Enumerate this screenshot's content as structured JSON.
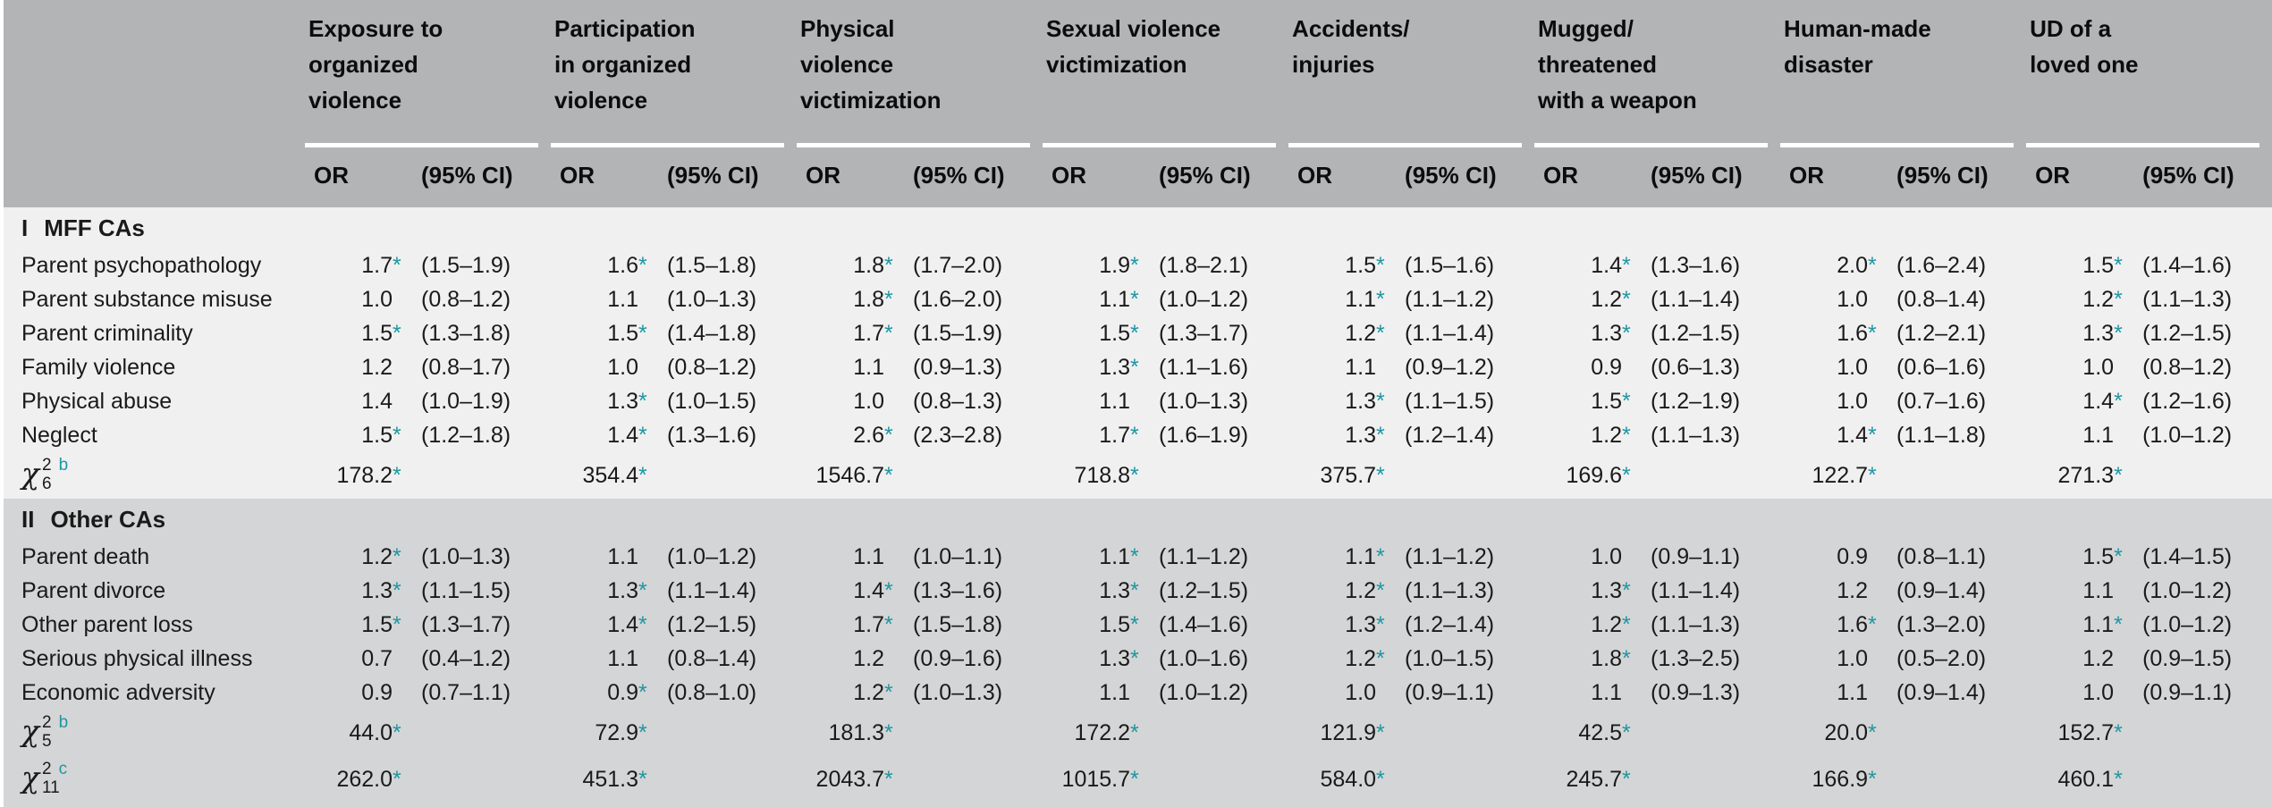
{
  "colors": {
    "header_bg": "#b2b4b6",
    "section1_bg": "#f0f0f1",
    "section2_bg": "#d4d5d6",
    "accent_teal": "#1d97a1",
    "ink": "#1a1a1a"
  },
  "table": {
    "sig_marker": "*",
    "subheader": {
      "or": "OR",
      "ci": "(95% CI)"
    },
    "groups": [
      {
        "title": "Exposure to\norganized\nviolence"
      },
      {
        "title": "Participation\nin organized\nviolence"
      },
      {
        "title": "Physical\nviolence\nvictimization"
      },
      {
        "title": "Sexual violence\nvictimization"
      },
      {
        "title": "Accidents/\ninjuries"
      },
      {
        "title": "Mugged/\nthreatened\nwith a weapon"
      },
      {
        "title": "Human-made\ndisaster"
      },
      {
        "title": "UD of a\nloved one"
      }
    ],
    "sections": [
      {
        "num": "I",
        "name": "MFF CAs",
        "rows": [
          {
            "label": "Parent psychopathology",
            "cells": [
              {
                "or": "1.7",
                "sig": true,
                "ci": "(1.5–1.9)"
              },
              {
                "or": "1.6",
                "sig": true,
                "ci": "(1.5–1.8)"
              },
              {
                "or": "1.8",
                "sig": true,
                "ci": "(1.7–2.0)"
              },
              {
                "or": "1.9",
                "sig": true,
                "ci": "(1.8–2.1)"
              },
              {
                "or": "1.5",
                "sig": true,
                "ci": "(1.5–1.6)"
              },
              {
                "or": "1.4",
                "sig": true,
                "ci": "(1.3–1.6)"
              },
              {
                "or": "2.0",
                "sig": true,
                "ci": "(1.6–2.4)"
              },
              {
                "or": "1.5",
                "sig": true,
                "ci": "(1.4–1.6)"
              }
            ]
          },
          {
            "label": "Parent substance misuse",
            "cells": [
              {
                "or": "1.0",
                "sig": false,
                "ci": "(0.8–1.2)"
              },
              {
                "or": "1.1",
                "sig": false,
                "ci": "(1.0–1.3)"
              },
              {
                "or": "1.8",
                "sig": true,
                "ci": "(1.6–2.0)"
              },
              {
                "or": "1.1",
                "sig": true,
                "ci": "(1.0–1.2)"
              },
              {
                "or": "1.1",
                "sig": true,
                "ci": "(1.1–1.2)"
              },
              {
                "or": "1.2",
                "sig": true,
                "ci": "(1.1–1.4)"
              },
              {
                "or": "1.0",
                "sig": false,
                "ci": "(0.8–1.4)"
              },
              {
                "or": "1.2",
                "sig": true,
                "ci": "(1.1–1.3)"
              }
            ]
          },
          {
            "label": "Parent criminality",
            "cells": [
              {
                "or": "1.5",
                "sig": true,
                "ci": "(1.3–1.8)"
              },
              {
                "or": "1.5",
                "sig": true,
                "ci": "(1.4–1.8)"
              },
              {
                "or": "1.7",
                "sig": true,
                "ci": "(1.5–1.9)"
              },
              {
                "or": "1.5",
                "sig": true,
                "ci": "(1.3–1.7)"
              },
              {
                "or": "1.2",
                "sig": true,
                "ci": "(1.1–1.4)"
              },
              {
                "or": "1.3",
                "sig": true,
                "ci": "(1.2–1.5)"
              },
              {
                "or": "1.6",
                "sig": true,
                "ci": "(1.2–2.1)"
              },
              {
                "or": "1.3",
                "sig": true,
                "ci": "(1.2–1.5)"
              }
            ]
          },
          {
            "label": "Family violence",
            "cells": [
              {
                "or": "1.2",
                "sig": false,
                "ci": "(0.8–1.7)"
              },
              {
                "or": "1.0",
                "sig": false,
                "ci": "(0.8–1.2)"
              },
              {
                "or": "1.1",
                "sig": false,
                "ci": "(0.9–1.3)"
              },
              {
                "or": "1.3",
                "sig": true,
                "ci": "(1.1–1.6)"
              },
              {
                "or": "1.1",
                "sig": false,
                "ci": "(0.9–1.2)"
              },
              {
                "or": "0.9",
                "sig": false,
                "ci": "(0.6–1.3)"
              },
              {
                "or": "1.0",
                "sig": false,
                "ci": "(0.6–1.6)"
              },
              {
                "or": "1.0",
                "sig": false,
                "ci": "(0.8–1.2)"
              }
            ]
          },
          {
            "label": "Physical abuse",
            "cells": [
              {
                "or": "1.4",
                "sig": false,
                "ci": "(1.0–1.9)"
              },
              {
                "or": "1.3",
                "sig": true,
                "ci": "(1.0–1.5)"
              },
              {
                "or": "1.0",
                "sig": false,
                "ci": "(0.8–1.3)"
              },
              {
                "or": "1.1",
                "sig": false,
                "ci": "(1.0–1.3)"
              },
              {
                "or": "1.3",
                "sig": true,
                "ci": "(1.1–1.5)"
              },
              {
                "or": "1.5",
                "sig": true,
                "ci": "(1.2–1.9)"
              },
              {
                "or": "1.0",
                "sig": false,
                "ci": "(0.7–1.6)"
              },
              {
                "or": "1.4",
                "sig": true,
                "ci": "(1.2–1.6)"
              }
            ]
          },
          {
            "label": "Neglect",
            "cells": [
              {
                "or": "1.5",
                "sig": true,
                "ci": "(1.2–1.8)"
              },
              {
                "or": "1.4",
                "sig": true,
                "ci": "(1.3–1.6)"
              },
              {
                "or": "2.6",
                "sig": true,
                "ci": "(2.3–2.8)"
              },
              {
                "or": "1.7",
                "sig": true,
                "ci": "(1.6–1.9)"
              },
              {
                "or": "1.3",
                "sig": true,
                "ci": "(1.2–1.4)"
              },
              {
                "or": "1.2",
                "sig": true,
                "ci": "(1.1–1.3)"
              },
              {
                "or": "1.4",
                "sig": true,
                "ci": "(1.1–1.8)"
              },
              {
                "or": "1.1",
                "sig": false,
                "ci": "(1.0–1.2)"
              }
            ]
          }
        ],
        "chi_rows": [
          {
            "sym": "χ",
            "exp": "2",
            "idx": "6",
            "fn": "b",
            "values": [
              {
                "v": "178.2",
                "sig": true
              },
              {
                "v": "354.4",
                "sig": true
              },
              {
                "v": "1546.7",
                "sig": true
              },
              {
                "v": "718.8",
                "sig": true
              },
              {
                "v": "375.7",
                "sig": true
              },
              {
                "v": "169.6",
                "sig": true
              },
              {
                "v": "122.7",
                "sig": true
              },
              {
                "v": "271.3",
                "sig": true
              }
            ]
          }
        ]
      },
      {
        "num": "II",
        "name": "Other CAs",
        "rows": [
          {
            "label": "Parent death",
            "cells": [
              {
                "or": "1.2",
                "sig": true,
                "ci": "(1.0–1.3)"
              },
              {
                "or": "1.1",
                "sig": false,
                "ci": "(1.0–1.2)"
              },
              {
                "or": "1.1",
                "sig": false,
                "ci": "(1.0–1.1)"
              },
              {
                "or": "1.1",
                "sig": true,
                "ci": "(1.1–1.2)"
              },
              {
                "or": "1.1",
                "sig": true,
                "ci": "(1.1–1.2)"
              },
              {
                "or": "1.0",
                "sig": false,
                "ci": "(0.9–1.1)"
              },
              {
                "or": "0.9",
                "sig": false,
                "ci": "(0.8–1.1)"
              },
              {
                "or": "1.5",
                "sig": true,
                "ci": "(1.4–1.5)"
              }
            ]
          },
          {
            "label": "Parent divorce",
            "cells": [
              {
                "or": "1.3",
                "sig": true,
                "ci": "(1.1–1.5)"
              },
              {
                "or": "1.3",
                "sig": true,
                "ci": "(1.1–1.4)"
              },
              {
                "or": "1.4",
                "sig": true,
                "ci": "(1.3–1.6)"
              },
              {
                "or": "1.3",
                "sig": true,
                "ci": "(1.2–1.5)"
              },
              {
                "or": "1.2",
                "sig": true,
                "ci": "(1.1–1.3)"
              },
              {
                "or": "1.3",
                "sig": true,
                "ci": "(1.1–1.4)"
              },
              {
                "or": "1.2",
                "sig": false,
                "ci": "(0.9–1.4)"
              },
              {
                "or": "1.1",
                "sig": false,
                "ci": "(1.0–1.2)"
              }
            ]
          },
          {
            "label": "Other parent loss",
            "cells": [
              {
                "or": "1.5",
                "sig": true,
                "ci": "(1.3–1.7)"
              },
              {
                "or": "1.4",
                "sig": true,
                "ci": "(1.2–1.5)"
              },
              {
                "or": "1.7",
                "sig": true,
                "ci": "(1.5–1.8)"
              },
              {
                "or": "1.5",
                "sig": true,
                "ci": "(1.4–1.6)"
              },
              {
                "or": "1.3",
                "sig": true,
                "ci": "(1.2–1.4)"
              },
              {
                "or": "1.2",
                "sig": true,
                "ci": "(1.1–1.3)"
              },
              {
                "or": "1.6",
                "sig": true,
                "ci": "(1.3–2.0)"
              },
              {
                "or": "1.1",
                "sig": true,
                "ci": "(1.0–1.2)"
              }
            ]
          },
          {
            "label": "Serious physical illness",
            "cells": [
              {
                "or": "0.7",
                "sig": false,
                "ci": "(0.4–1.2)"
              },
              {
                "or": "1.1",
                "sig": false,
                "ci": "(0.8–1.4)"
              },
              {
                "or": "1.2",
                "sig": false,
                "ci": "(0.9–1.6)"
              },
              {
                "or": "1.3",
                "sig": true,
                "ci": "(1.0–1.6)"
              },
              {
                "or": "1.2",
                "sig": true,
                "ci": "(1.0–1.5)"
              },
              {
                "or": "1.8",
                "sig": true,
                "ci": "(1.3–2.5)"
              },
              {
                "or": "1.0",
                "sig": false,
                "ci": "(0.5–2.0)"
              },
              {
                "or": "1.2",
                "sig": false,
                "ci": "(0.9–1.5)"
              }
            ]
          },
          {
            "label": "Economic adversity",
            "cells": [
              {
                "or": "0.9",
                "sig": false,
                "ci": "(0.7–1.1)"
              },
              {
                "or": "0.9",
                "sig": true,
                "ci": "(0.8–1.0)"
              },
              {
                "or": "1.2",
                "sig": true,
                "ci": "(1.0–1.3)"
              },
              {
                "or": "1.1",
                "sig": false,
                "ci": "(1.0–1.2)"
              },
              {
                "or": "1.0",
                "sig": false,
                "ci": "(0.9–1.1)"
              },
              {
                "or": "1.1",
                "sig": false,
                "ci": "(0.9–1.3)"
              },
              {
                "or": "1.1",
                "sig": false,
                "ci": "(0.9–1.4)"
              },
              {
                "or": "1.0",
                "sig": false,
                "ci": "(0.9–1.1)"
              }
            ]
          }
        ],
        "chi_rows": [
          {
            "sym": "χ",
            "exp": "2",
            "idx": "5",
            "fn": "b",
            "values": [
              {
                "v": "44.0",
                "sig": true
              },
              {
                "v": "72.9",
                "sig": true
              },
              {
                "v": "181.3",
                "sig": true
              },
              {
                "v": "172.2",
                "sig": true
              },
              {
                "v": "121.9",
                "sig": true
              },
              {
                "v": "42.5",
                "sig": true
              },
              {
                "v": "20.0",
                "sig": true
              },
              {
                "v": "152.7",
                "sig": true
              }
            ]
          },
          {
            "sym": "χ",
            "exp": "2",
            "idx": "11",
            "fn": "c",
            "values": [
              {
                "v": "262.0",
                "sig": true
              },
              {
                "v": "451.3",
                "sig": true
              },
              {
                "v": "2043.7",
                "sig": true
              },
              {
                "v": "1015.7",
                "sig": true
              },
              {
                "v": "584.0",
                "sig": true
              },
              {
                "v": "245.7",
                "sig": true
              },
              {
                "v": "166.9",
                "sig": true
              },
              {
                "v": "460.1",
                "sig": true
              }
            ]
          }
        ]
      }
    ]
  }
}
